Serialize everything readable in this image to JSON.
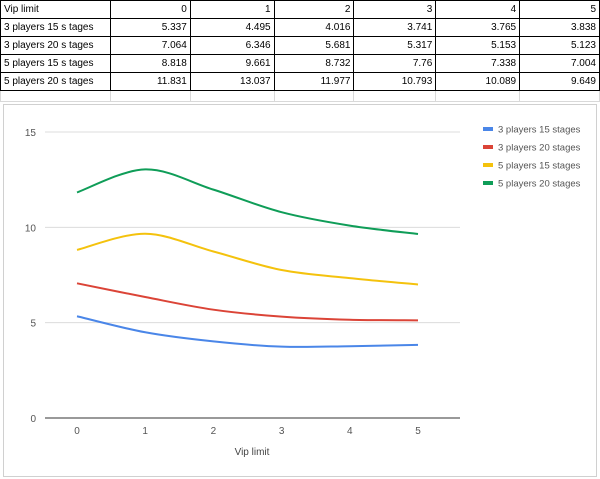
{
  "table": {
    "header": [
      "Vip limit",
      "0",
      "1",
      "2",
      "3",
      "4",
      "5"
    ],
    "rows": [
      {
        "label": "3 players  15 s tages",
        "values": [
          "5.337",
          "4.495",
          "4.016",
          "3.741",
          "3.765",
          "3.838"
        ]
      },
      {
        "label": "3 players  20 s tages",
        "values": [
          "7.064",
          "6.346",
          "5.681",
          "5.317",
          "5.153",
          "5.123"
        ]
      },
      {
        "label": "5 players  15 s tages",
        "values": [
          "8.818",
          "9.661",
          "8.732",
          "7.76",
          "7.338",
          "7.004"
        ]
      },
      {
        "label": "5 players  20 s tages",
        "values": [
          "11.831",
          "13.037",
          "11.977",
          "10.793",
          "10.089",
          "9.649"
        ]
      }
    ]
  },
  "chart_data": {
    "type": "line",
    "x": [
      0,
      1,
      2,
      3,
      4,
      5
    ],
    "xlabel": "Vip limit",
    "ylabel": "",
    "ylim": [
      0,
      15
    ],
    "yticks": [
      0,
      5,
      10,
      15
    ],
    "grid": true,
    "legend_position": "right",
    "smooth": true,
    "series": [
      {
        "name": "3 players 15 stages",
        "color": "#4a86e8",
        "values": [
          5.337,
          4.495,
          4.016,
          3.741,
          3.765,
          3.838
        ]
      },
      {
        "name": "3 players 20 stages",
        "color": "#db4437",
        "values": [
          7.064,
          6.346,
          5.681,
          5.317,
          5.153,
          5.123
        ]
      },
      {
        "name": "5 players 15 stages",
        "color": "#f4c20d",
        "values": [
          8.818,
          9.661,
          8.732,
          7.76,
          7.338,
          7.004
        ]
      },
      {
        "name": "5 players 20 stages",
        "color": "#0f9d58",
        "values": [
          11.831,
          13.037,
          11.977,
          10.793,
          10.089,
          9.649
        ]
      }
    ]
  }
}
